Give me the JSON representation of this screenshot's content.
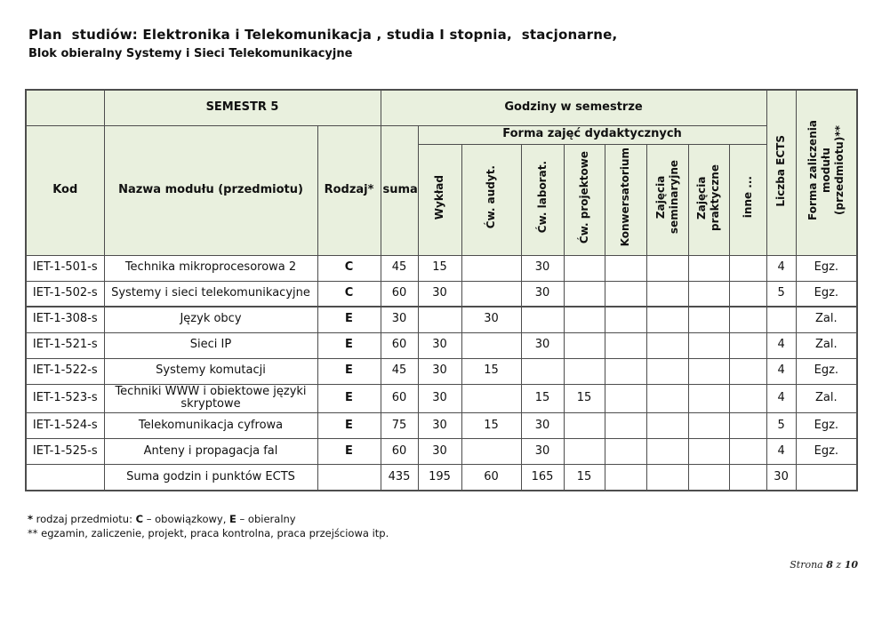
{
  "page": {
    "title": "Plan  studiów: Elektronika i Telekomunikacja , studia I stopnia,  stacjonarne,",
    "subtitle": "Blok obieralny Systemy i Sieci Telekomunikacyjne",
    "pagination": {
      "label": "Strona ",
      "current": "8",
      "separator": " z ",
      "total": "10"
    }
  },
  "colors": {
    "header_bg": "#e9f0de",
    "border": "#4d4d4d",
    "text": "#111111"
  },
  "footnotes": {
    "note1": {
      "star": "*",
      "prefix": " rodzaj przedmiotu: ",
      "c_label": "C",
      "between": " – obowiązkowy, ",
      "e_label": "E",
      "suffix": " – obieralny"
    },
    "note2": "** egzamin, zaliczenie, projekt, praca kontrolna, praca przejściowa itp."
  },
  "table": {
    "header": {
      "semester": "SEMESTR 5",
      "hours_group": "Godziny w semestrze",
      "form_group": "Forma zajęć dydaktycznych",
      "kod": "Kod",
      "nazwa": "Nazwa modułu (przedmiotu)",
      "rodzaj": "Rodzaj*",
      "suma": "suma",
      "form_columns": [
        "Wykład",
        "Ćw. audyt.",
        "Ćw. laborat.",
        "Ćw. projektowe",
        "Konwersatorium",
        "Zajęcia\nseminaryjne",
        "Zajęcia\npraktyczne",
        "inne ..."
      ],
      "ects": "Liczba ECTS",
      "zaliczenie": "Forma zaliczenia modułu\n(przedmiotu)**"
    },
    "rows": [
      [
        "IET-1-501-s",
        "Technika mikroprocesorowa 2",
        "C",
        "45",
        "15",
        "",
        "30",
        "",
        "",
        "",
        "",
        "",
        "4",
        "Egz."
      ],
      [
        "IET-1-502-s",
        "Systemy i sieci telekomunikacyjne",
        "C",
        "60",
        "30",
        "",
        "30",
        "",
        "",
        "",
        "",
        "",
        "5",
        "Egz."
      ],
      [
        "IET-1-308-s",
        "Język obcy",
        "E",
        "30",
        "",
        "30",
        "",
        "",
        "",
        "",
        "",
        "",
        "",
        "Zal."
      ],
      [
        "IET-1-521-s",
        "Sieci IP",
        "E",
        "60",
        "30",
        "",
        "30",
        "",
        "",
        "",
        "",
        "",
        "4",
        "Zal."
      ],
      [
        "IET-1-522-s",
        "Systemy komutacji",
        "E",
        "45",
        "30",
        "15",
        "",
        "",
        "",
        "",
        "",
        "",
        "4",
        "Egz."
      ],
      [
        "IET-1-523-s",
        "Techniki WWW i obiektowe języki skryptowe",
        "E",
        "60",
        "30",
        "",
        "15",
        "15",
        "",
        "",
        "",
        "",
        "4",
        "Zal."
      ],
      [
        "IET-1-524-s",
        "Telekomunikacja cyfrowa",
        "E",
        "75",
        "30",
        "15",
        "30",
        "",
        "",
        "",
        "",
        "",
        "5",
        "Egz."
      ],
      [
        "IET-1-525-s",
        "Anteny i propagacja fal",
        "E",
        "60",
        "30",
        "",
        "30",
        "",
        "",
        "",
        "",
        "",
        "4",
        "Egz."
      ],
      [
        "",
        "Suma godzin i punktów ECTS",
        "",
        "435",
        "195",
        "60",
        "165",
        "15",
        "",
        "",
        "",
        "",
        "30",
        ""
      ]
    ]
  }
}
